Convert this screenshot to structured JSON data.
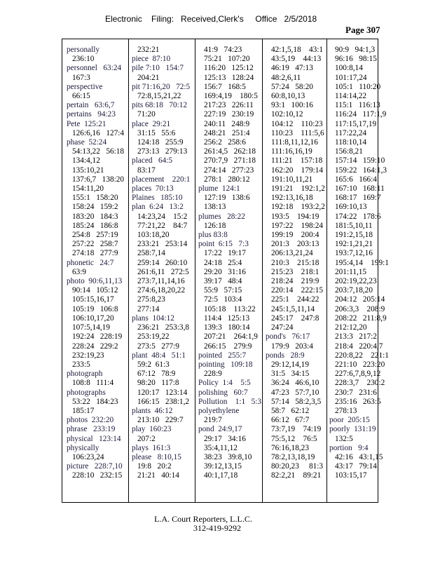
{
  "header": {
    "text": "Electronic    Filing:   Received,Clerk's     Office   2/5/2018",
    "page": "Page 307"
  },
  "columns": [
    [
      "personally",
      "236:10",
      "personnel   63:24",
      "167:3",
      "perspective",
      "66:15",
      "pertain   63:6,7",
      "pertains   94:23",
      "Pete  125:21",
      "126:6,16   127:4",
      "phase  52:24",
      "54:13,22   56:18",
      "134:4,12",
      "135:10,21",
      "137:6,7   138:20",
      "154:11,20",
      "155:1   158:20",
      "158:24   159:2",
      "183:20   184:3",
      "185:24   186:8",
      "254:8   257:19",
      "257:22   258:7",
      "274:18   277:9",
      "phonetic   24:7",
      "63:9",
      "photo  90:6,11,13",
      "90:14   105:12",
      "105:15,16,17",
      "105:19   106:8",
      "106:10,17,20",
      "107:5,14,19",
      "192:24   228:19",
      "228:24   229:2",
      "232:19,23",
      "233:5",
      "photograph",
      "108:8   111:4",
      "photographs",
      "53:22   184:23",
      "185:17",
      "photos  232:20",
      "phrase   233:19",
      "physical   123:14",
      "physically",
      "106:23,24",
      "picture   228:7,10",
      "228:10   232:15"
    ],
    [
      "232:21",
      "piece  87:10",
      "pile 7:10   154:7",
      "204:21",
      "pit 71:16,20   72:5",
      "72:8,15,21,22",
      "pits 68:18   70:12",
      "71:20",
      "place  29:21",
      "31:15   55:6",
      "124:18   255:9",
      "273:13   279:13",
      "placed   64:5",
      "83:17",
      "placement    220:1",
      "places  70:13",
      "Plaines   185:10",
      "plan  6:24   13:2",
      "14:23,24    15:2",
      "77:21,22    84:7",
      "103:18,20",
      "233:21   253:14",
      "258:7,14",
      "259:14   260:10",
      "261:6,11   272:5",
      "273:7,11,14,16",
      "274:6,18,20,22",
      "275:8,23",
      "277:14",
      "plans  104:12",
      "236:21   253:3,8",
      "253:19,22",
      "273:5   277:9",
      "plant  48:4   51:1",
      "59:2  61:3",
      "67:12   78:9",
      "98:20   117:8",
      "120:17   123:14",
      "166:15   238:1,2",
      "plants  46:12",
      "213:10   229:7",
      "play  160:23",
      "207:2",
      "plays  161:3",
      "please   8:10,15",
      "19:8   20:2",
      "21:21   40:14"
    ],
    [
      "41:9   74:23",
      "75:21   107:20",
      "116:20   125:12",
      "125:13   128:24",
      "156:7   168:5",
      "169:4,19    180:5",
      "217:23   226:11",
      "227:19   230:19",
      "240:11   248:9",
      "248:21   251:4",
      "256:2   258:6",
      "261:4,5   262:18",
      "270:7,9   271:18",
      "274:14   277:23",
      "278:1   280:12",
      "plume  124:1",
      "127:19   138:6",
      "138:13",
      "plumes   28:22",
      "126:18",
      "plus 83:8",
      "point  6:15   7:3",
      "17:22   19:17",
      "24:18   25:4",
      "29:20   31:16",
      "39:17   48:4",
      "55:9   57:15",
      "72:5   103:4",
      "105:18    113:22",
      "114:4   125:13",
      "139:3   180:14",
      "207:21    264:1,9",
      "266:15    279:9",
      "pointed   255:7",
      "pointing   109:18",
      "228:9",
      "Policy  1:4    5:5",
      "polishing   60:7",
      "Pollution    1:1   5:3",
      "polyethylene",
      "219:7",
      "pond  24:9,17",
      "29:17   34:16",
      "35:4,11,12",
      "38:23   39:8,10",
      "39:12,13,15",
      "40:1,17,18"
    ],
    [
      "42:1,5,18    43:1",
      "43:5,19    44:13",
      "46:19   47:13",
      "48:2,6,11",
      "57:24   58:20",
      "60:8,10,13",
      "93:1   100:16",
      "102:10,12",
      "104:12    110:23",
      "110:23    111:5,6",
      "111:8,11,12,16",
      "111:16,16,19",
      "111:21    157:18",
      "162:20    179:14",
      "191:10,11,21",
      "191:21    192:1,2",
      "192:13,16,18",
      "192:18    193:2,2",
      "193:5    194:19",
      "197:22    198:24",
      "199:19    200:4",
      "201:3    203:13",
      "206:13,21,24",
      "210:3    215:18",
      "215:23    218:1",
      "218:24    219:9",
      "220:14    222:15",
      "225:1    244:22",
      "245:1,5,11,14",
      "245:17    247:8",
      "247:24",
      "pond's   76:17",
      "179:9   203:4",
      "ponds   28:9",
      "29:12,14,19",
      "31:5   34:15",
      "36:24   46:6,10",
      "47:23   57:7,10",
      "57:14   58:2,3,5",
      "58:7   62:12",
      "66:12   67:7",
      "73:7,19    74:19",
      "75:5,12    76:5",
      "76:16,18,23",
      "78:2,13,18,19",
      "80:20,23     81:3",
      "82:2,21    89:21"
    ],
    [
      "90:9   94:1,3",
      "96:16   98:15",
      "100:8,14",
      "101:17,24",
      "105:1   110:20",
      "114:14,22",
      "115:1   116:13",
      "116:24   117:1,9",
      "117:15,17,19",
      "117:22,24",
      "118:10,14",
      "156:8,21",
      "157:14   159:10",
      "159:22   164:1,3",
      "165:6   166:4",
      "167:10   168:11",
      "168:17   169:7",
      "169:10,13",
      "174:22   178:6",
      "181:5,10,11",
      "191:2,15,18",
      "192:1,21,21",
      "193:7,12,16",
      "195:4,14    199:1",
      "201:11,15",
      "202:19,22,23",
      "203:7,18,20",
      "204:12   205:14",
      "206:3,3    208:9",
      "208:22   211:8,9",
      "212:12,20",
      "213:3   217:2",
      "218:4   220:4,7",
      "220:8,22    221:1",
      "221:10   223:20",
      "227:6,7,8,9,12",
      "228:3,7    230:2",
      "230:7   231:6",
      "235:16   263:5",
      "278:13",
      "poor  205:15",
      "poorly  131:19",
      "132:5",
      "portion   9:4",
      "42:16   43:1,15",
      "43:17   79:14",
      "103:15,17"
    ]
  ],
  "footer": {
    "company": "L.A. Court Reporters, L.L.C.",
    "phone": "312-419-9292"
  }
}
